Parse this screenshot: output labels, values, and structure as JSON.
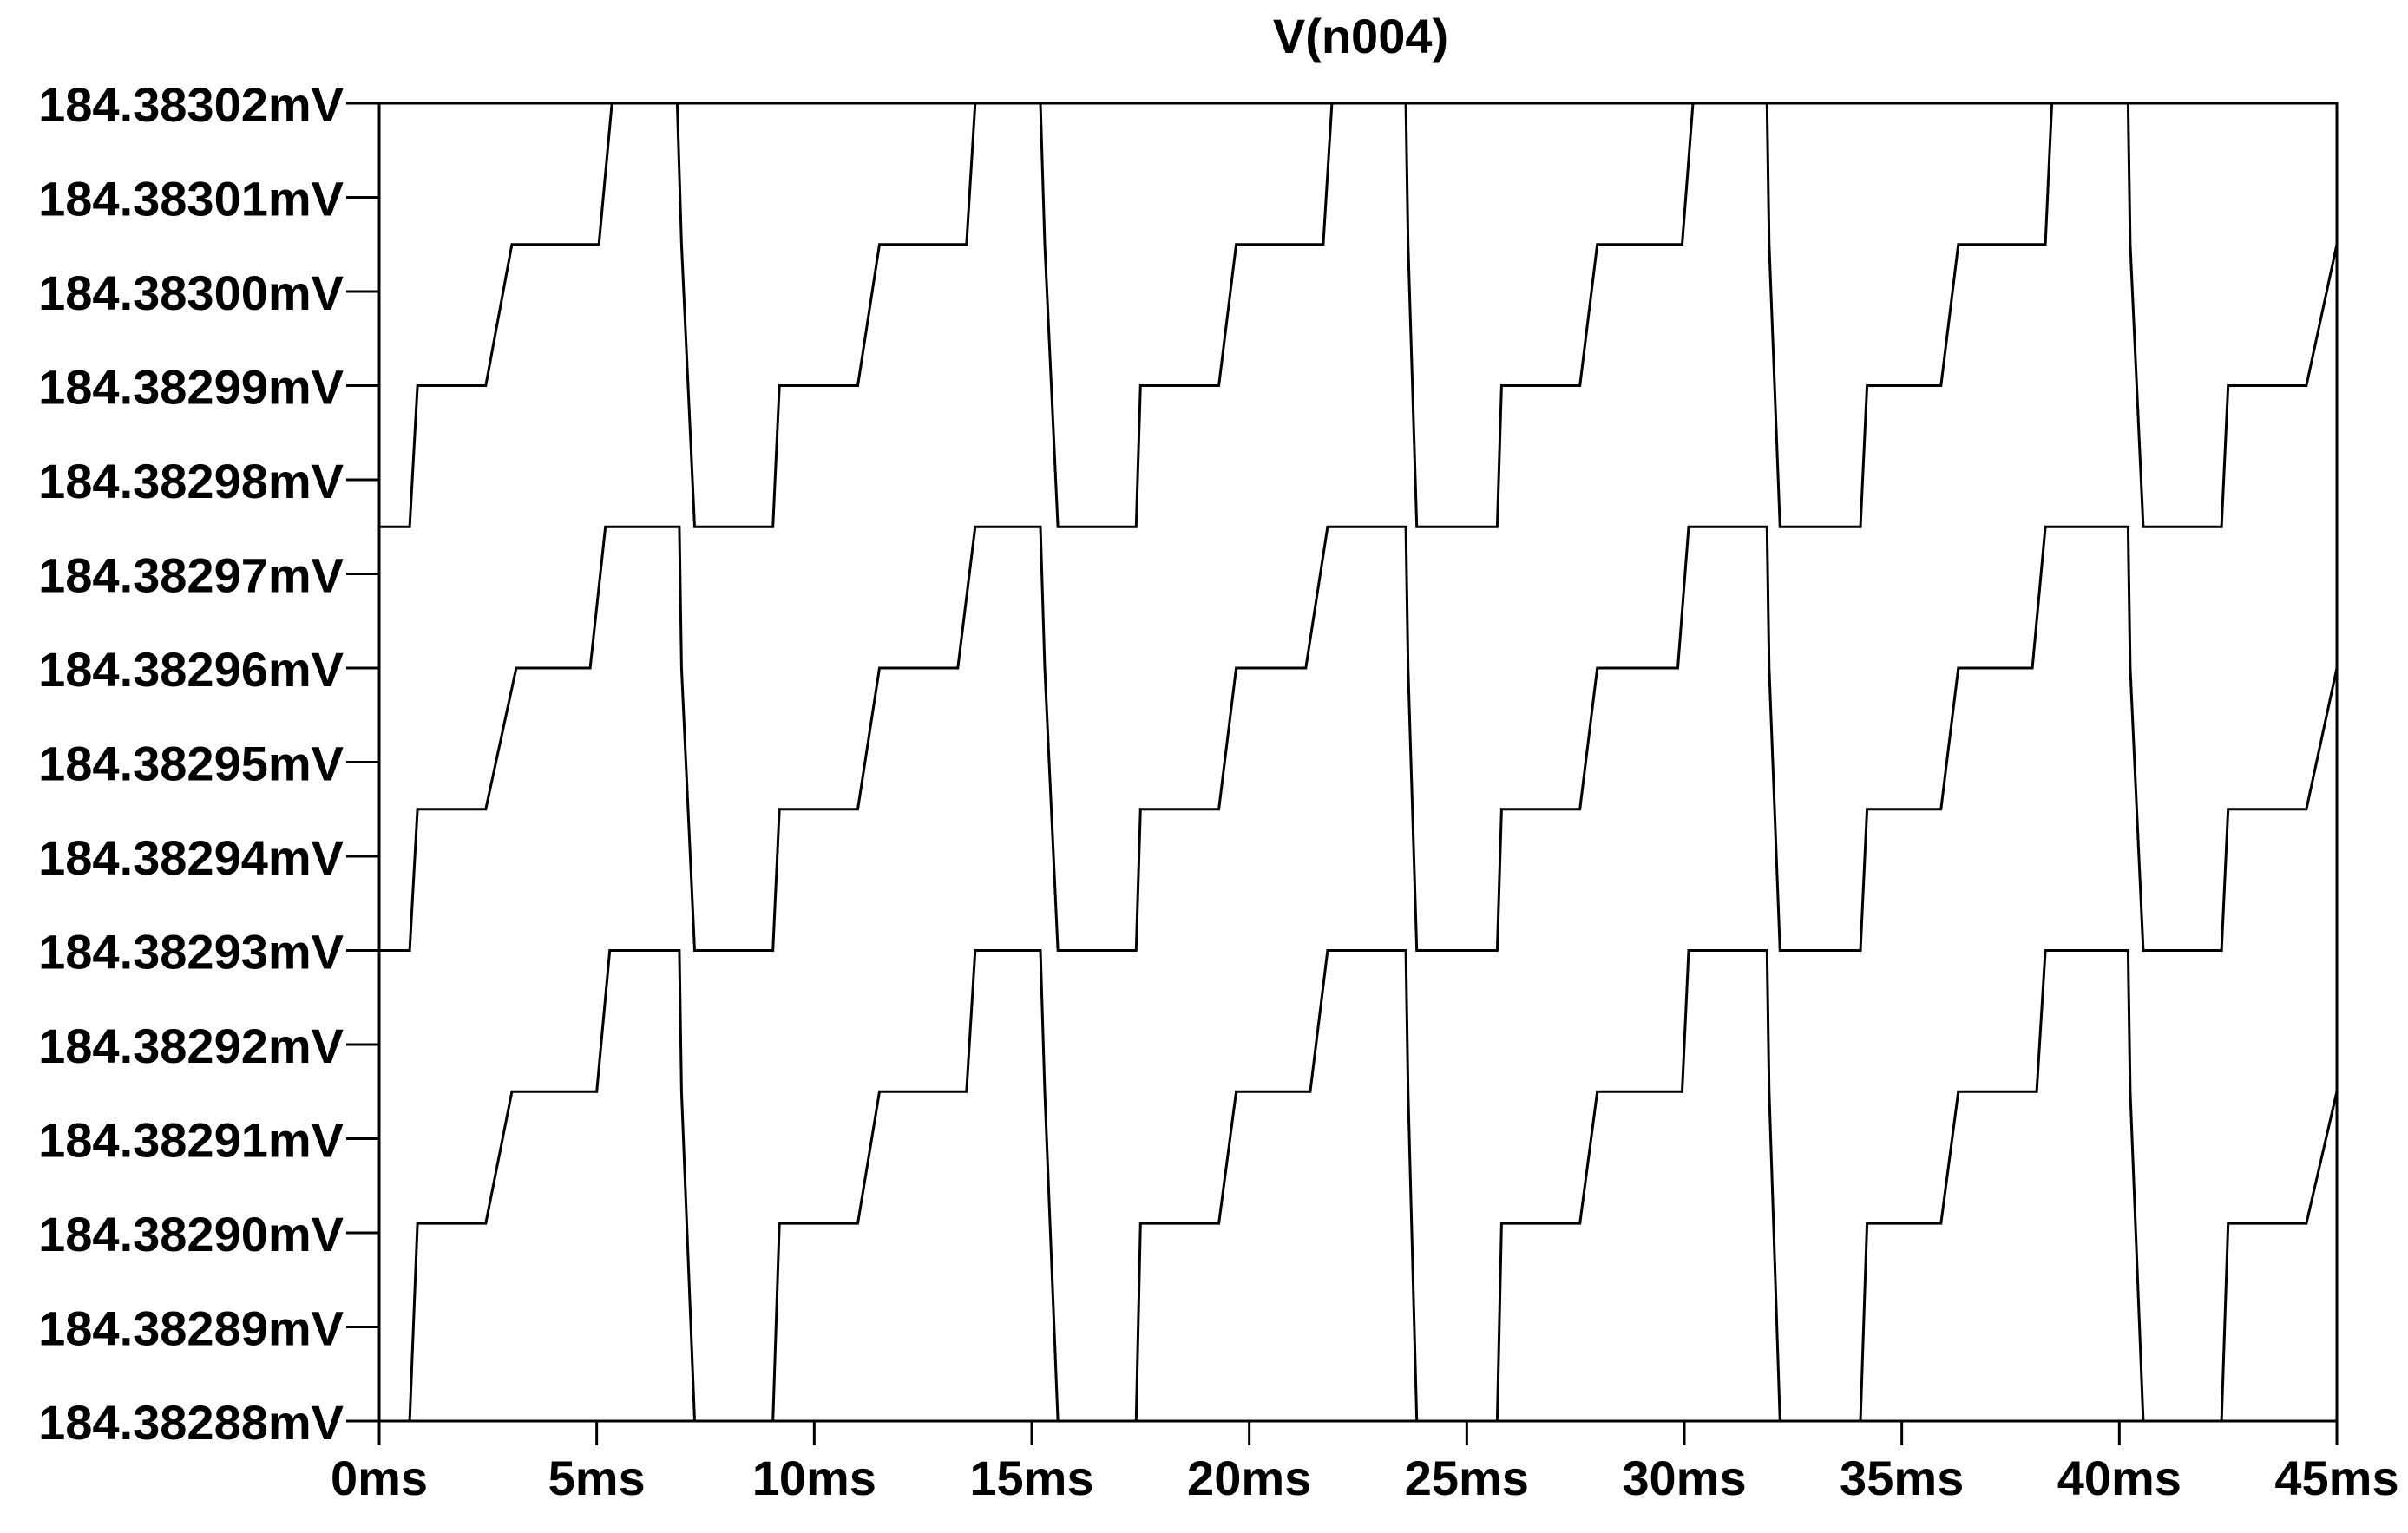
{
  "chart_data": {
    "type": "line",
    "title": "V(n004)",
    "xlabel": "",
    "ylabel": "",
    "x_unit": "ms",
    "y_unit": "mV",
    "xlim": [
      0,
      45
    ],
    "ylim": [
      184.38288,
      184.38302
    ],
    "grid": false,
    "legend": "none",
    "x_ticks": [
      0,
      5,
      10,
      15,
      20,
      25,
      30,
      35,
      40,
      45
    ],
    "x_tick_labels": [
      "0ms",
      "5ms",
      "10ms",
      "15ms",
      "20ms",
      "25ms",
      "30ms",
      "35ms",
      "40ms",
      "45ms"
    ],
    "y_ticks": [
      184.38302,
      184.38301,
      184.383,
      184.38299,
      184.38298,
      184.38297,
      184.38296,
      184.38295,
      184.38294,
      184.38293,
      184.38292,
      184.38291,
      184.3829,
      184.38289,
      184.38288
    ],
    "y_tick_labels": [
      "184.38302mV",
      "184.38301mV",
      "184.38300mV",
      "184.38299mV",
      "184.38298mV",
      "184.38297mV",
      "184.38296mV",
      "184.38295mV",
      "184.38294mV",
      "184.38293mV",
      "184.38292mV",
      "184.38291mV",
      "184.38290mV",
      "184.38289mV",
      "184.38288mV"
    ],
    "series": [
      {
        "color": "#000000",
        "x": [
          0,
          0.7,
          0.88,
          2.45,
          3.05,
          5.0,
          5.3,
          6.9,
          6.95,
          7.25,
          9.05,
          9.2,
          11.0,
          11.5,
          13.5,
          13.7,
          15.2,
          15.3,
          15.6,
          17.4,
          17.5,
          19.3,
          19.7,
          21.4,
          21.8,
          23.6,
          23.65,
          23.85,
          25.7,
          25.8,
          27.6,
          28.0,
          29.95,
          30.1,
          31.9,
          31.95,
          32.2,
          34.05,
          34.2,
          35.9,
          36.3,
          38.1,
          38.3,
          40.2,
          40.25,
          40.55,
          42.35,
          42.5,
          44.3,
          45.0
        ],
        "y": [
          184.38288,
          184.38288,
          184.382901,
          184.382901,
          184.382915,
          184.382915,
          184.38293,
          184.38293,
          184.382915,
          184.38288,
          184.38288,
          184.382901,
          184.382901,
          184.382915,
          184.382915,
          184.38293,
          184.38293,
          184.382915,
          184.38288,
          184.38288,
          184.382901,
          184.382901,
          184.382915,
          184.382915,
          184.38293,
          184.38293,
          184.382915,
          184.38288,
          184.38288,
          184.382901,
          184.382901,
          184.382915,
          184.382915,
          184.38293,
          184.38293,
          184.382915,
          184.38288,
          184.38288,
          184.382901,
          184.382901,
          184.382915,
          184.382915,
          184.38293,
          184.38293,
          184.382915,
          184.38288,
          184.38288,
          184.382901,
          184.382901,
          184.382915
        ]
      },
      {
        "color": "#000000",
        "x": [
          0,
          0.7,
          0.88,
          2.45,
          3.15,
          4.85,
          5.2,
          6.9,
          6.95,
          7.25,
          9.05,
          9.2,
          11.0,
          11.5,
          13.3,
          13.7,
          15.2,
          15.3,
          15.6,
          17.4,
          17.5,
          19.3,
          19.7,
          21.3,
          21.8,
          23.6,
          23.65,
          23.85,
          25.7,
          25.8,
          27.6,
          28.0,
          29.85,
          30.1,
          31.9,
          31.95,
          32.2,
          34.05,
          34.2,
          35.9,
          36.3,
          38.0,
          38.3,
          40.2,
          40.25,
          40.55,
          42.35,
          42.5,
          44.3,
          45.0
        ],
        "y": [
          184.38293,
          184.38293,
          184.382945,
          184.382945,
          184.38296,
          184.38296,
          184.382975,
          184.382975,
          184.38296,
          184.38293,
          184.38293,
          184.382945,
          184.382945,
          184.38296,
          184.38296,
          184.382975,
          184.382975,
          184.38296,
          184.38293,
          184.38293,
          184.382945,
          184.382945,
          184.38296,
          184.38296,
          184.382975,
          184.382975,
          184.38296,
          184.38293,
          184.38293,
          184.382945,
          184.382945,
          184.38296,
          184.38296,
          184.382975,
          184.382975,
          184.38296,
          184.38293,
          184.38293,
          184.382945,
          184.382945,
          184.38296,
          184.38296,
          184.382975,
          184.382975,
          184.38296,
          184.38293,
          184.38293,
          184.382945,
          184.382945,
          184.38296
        ]
      },
      {
        "color": "#000000",
        "x": [
          0,
          0.7,
          0.88,
          2.45,
          3.05,
          5.05,
          5.35,
          6.85,
          6.95,
          7.25,
          9.05,
          9.2,
          11.0,
          11.5,
          13.5,
          13.7,
          15.2,
          15.3,
          15.6,
          17.4,
          17.5,
          19.3,
          19.7,
          21.7,
          21.9,
          23.6,
          23.65,
          23.85,
          25.7,
          25.8,
          27.6,
          28.0,
          29.95,
          30.2,
          31.9,
          31.95,
          32.2,
          34.05,
          34.2,
          35.9,
          36.3,
          38.3,
          38.45,
          40.2,
          40.25,
          40.55,
          42.35,
          42.5,
          44.3,
          45.0
        ],
        "y": [
          184.382975,
          184.382975,
          184.38299,
          184.38299,
          184.383005,
          184.383005,
          184.38302,
          184.38302,
          184.383005,
          184.382975,
          184.382975,
          184.38299,
          184.38299,
          184.383005,
          184.383005,
          184.38302,
          184.38302,
          184.383005,
          184.382975,
          184.382975,
          184.38299,
          184.38299,
          184.383005,
          184.383005,
          184.38302,
          184.38302,
          184.383005,
          184.382975,
          184.382975,
          184.38299,
          184.38299,
          184.383005,
          184.383005,
          184.38302,
          184.38302,
          184.383005,
          184.382975,
          184.382975,
          184.38299,
          184.38299,
          184.383005,
          184.383005,
          184.38302,
          184.38302,
          184.383005,
          184.382975,
          184.382975,
          184.38299,
          184.38299,
          184.383005
        ]
      }
    ]
  }
}
